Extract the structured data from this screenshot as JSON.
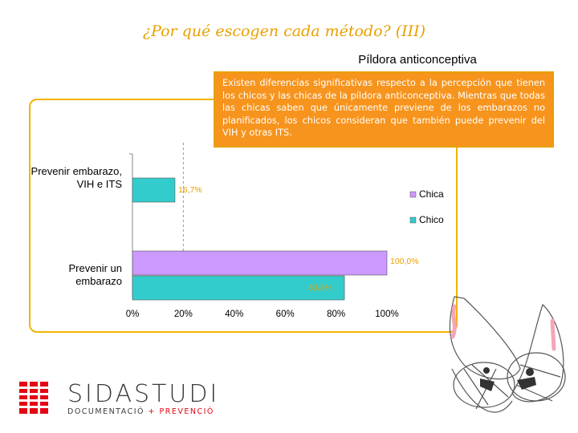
{
  "slide": {
    "title": "¿Por qué escogen cada método? (III)",
    "subtitle": "Píldora anticonceptiva",
    "note": "Existen diferencias significativas respecto a la percepción que tienen los chicos y las chicas de la píldora anticonceptiva. Mientras que todas las chicas saben que únicamente previene de los embarazos no planificados, los chicos consideran que también puede prevenir del VIH y otras ITS.",
    "accent_orange": "#f7941d",
    "frame_color": "#f0b400"
  },
  "logo": {
    "brand_sida": "SIDA",
    "brand_studi": "STUDI",
    "tagline_a": "DOCUMENTACIÓ",
    "tagline_sep": "+",
    "tagline_b": "PREVENCIÓ"
  },
  "chart_data": {
    "type": "bar",
    "orientation": "horizontal",
    "categories": [
      "Prevenir embarazo, VIH e ITS",
      "Prevenir un embarazo"
    ],
    "category_lines": [
      [
        "Prevenir embarazo,",
        "VIH e ITS"
      ],
      [
        "Prevenir un",
        "embarazo"
      ]
    ],
    "series": [
      {
        "name": "Chica",
        "color": "#cc99ff",
        "values": [
          null,
          100.0
        ],
        "labels": [
          "",
          "100,0%"
        ]
      },
      {
        "name": "Chico",
        "color": "#33cccc",
        "values": [
          16.7,
          83.3
        ],
        "labels": [
          "16,7%",
          "83,3%"
        ]
      }
    ],
    "xlim": [
      0,
      100
    ],
    "x_ticks": [
      "0%",
      "20%",
      "40%",
      "60%",
      "80%",
      "100%"
    ],
    "x_tick_values": [
      0,
      20,
      40,
      60,
      80,
      100
    ],
    "reference_line": 20,
    "legend_position": "right",
    "grid": false
  }
}
